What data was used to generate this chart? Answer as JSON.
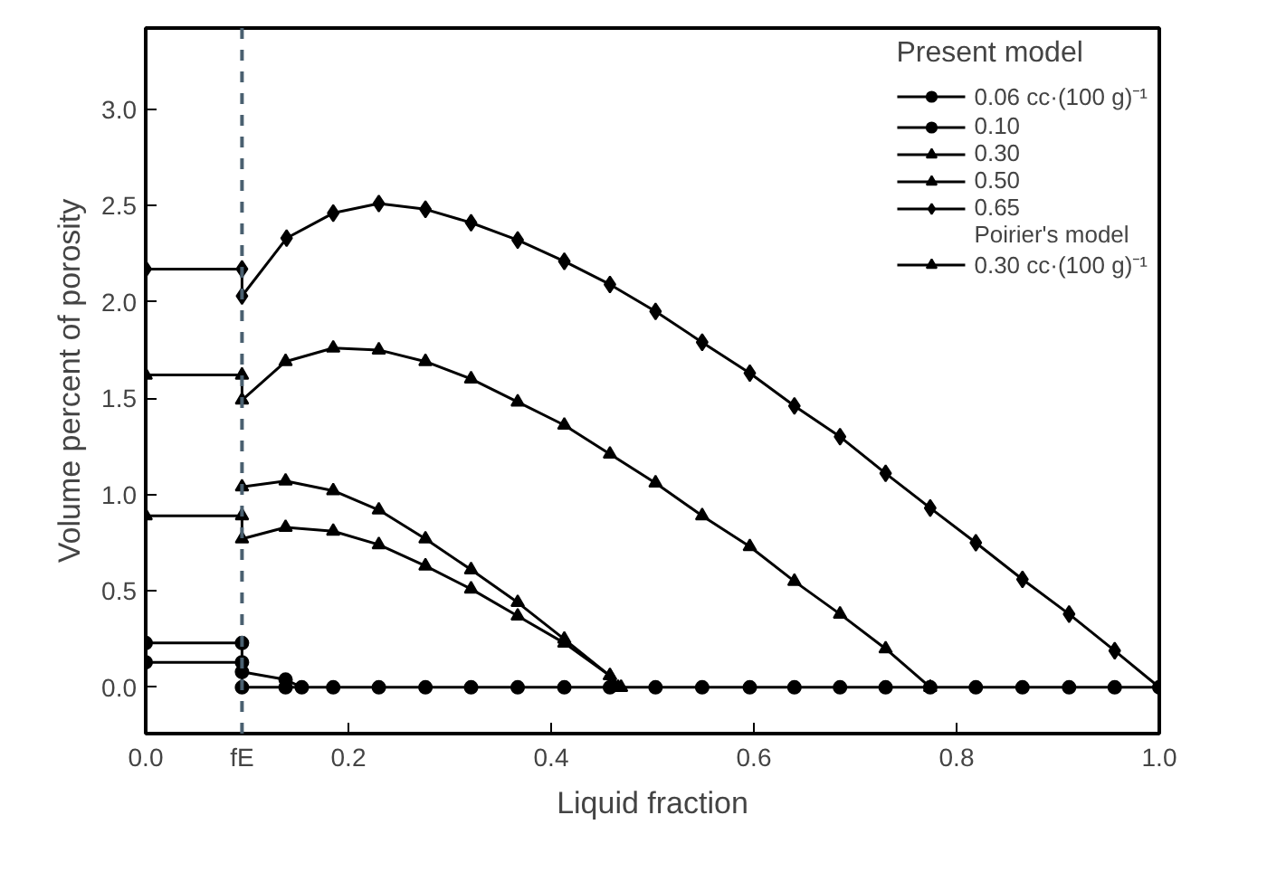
{
  "chart_data": {
    "type": "line",
    "xlabel": "Liquid fraction",
    "ylabel": "Volume percent of porosity",
    "xlim": [
      0,
      1
    ],
    "ylim": [
      -0.24,
      3.42
    ],
    "xticks": [
      "0.0",
      {
        "value": 0.095,
        "label": "fE"
      },
      {
        "value": 0.2,
        "label": "0.2"
      },
      {
        "value": 0.4,
        "label": "0.4"
      },
      {
        "value": 0.6,
        "label": "0.6"
      },
      {
        "value": 0.8,
        "label": "0.8"
      },
      {
        "value": 1.0,
        "label": "1.0"
      }
    ],
    "yticks": [
      {
        "value": 0,
        "label": "0.0"
      },
      {
        "value": 0.5,
        "label": "0.5"
      },
      {
        "value": 1.0,
        "label": "1.0"
      },
      {
        "value": 1.5,
        "label": "1.5"
      },
      {
        "value": 2.0,
        "label": "2.0"
      },
      {
        "value": 2.5,
        "label": "2.5"
      },
      {
        "value": 3.0,
        "label": "3.0"
      }
    ],
    "grid": false,
    "legend": "top right",
    "legend_title": "Present model",
    "line_style": "solid",
    "annotations": [
      "Poirier's model"
    ],
    "ref_lines": [
      {
        "axis": "x",
        "value": 0.095,
        "line_style": "dashed",
        "color": "#4a6070"
      }
    ],
    "series": [
      {
        "name": "0.06 cc·(100 g)⁻¹",
        "color": "#000000",
        "marker": "circle",
        "x": [
          0,
          0.095,
          0.095,
          0.138,
          0.185,
          0.23,
          0.276,
          0.321,
          0.367,
          0.413,
          0.458,
          0.503,
          0.549,
          0.596,
          0.64,
          0.685,
          0.73,
          0.774,
          0.819,
          0.865,
          0.911,
          0.956,
          1.0
        ],
        "values": [
          0.13,
          0.13,
          0,
          0,
          0,
          0,
          0,
          0,
          0,
          0,
          0,
          0,
          0,
          0,
          0,
          0,
          0,
          0,
          0,
          0,
          0,
          0,
          0
        ]
      },
      {
        "name": "0.10",
        "color": "#000000",
        "marker": "circle",
        "x": [
          0,
          0.095,
          0.095,
          0.138,
          0.154
        ],
        "values": [
          0.23,
          0.23,
          0.08,
          0.04,
          0
        ]
      },
      {
        "name": "0.30",
        "color": "#000000",
        "marker": "triangle",
        "x": [
          0,
          0.095,
          0.095,
          0.138,
          0.185,
          0.23,
          0.276,
          0.321,
          0.367,
          0.413,
          0.458,
          0.466
        ],
        "values": [
          0.89,
          0.89,
          0.77,
          0.83,
          0.81,
          0.74,
          0.63,
          0.51,
          0.37,
          0.23,
          0.06,
          0
        ]
      },
      {
        "name": "0.50",
        "color": "#000000",
        "marker": "triangle",
        "x": [
          0,
          0.095,
          0.095,
          0.138,
          0.185,
          0.23,
          0.276,
          0.321,
          0.367,
          0.413,
          0.458,
          0.503,
          0.549,
          0.596,
          0.64,
          0.685,
          0.73,
          0.774
        ],
        "values": [
          1.62,
          1.62,
          1.49,
          1.69,
          1.76,
          1.75,
          1.69,
          1.6,
          1.48,
          1.36,
          1.21,
          1.06,
          0.89,
          0.73,
          0.55,
          0.38,
          0.2,
          0
        ]
      },
      {
        "name": "0.65",
        "color": "#000000",
        "marker": "diamond",
        "x": [
          0,
          0.095,
          0.095,
          0.139,
          0.185,
          0.23,
          0.276,
          0.321,
          0.367,
          0.413,
          0.458,
          0.503,
          0.549,
          0.596,
          0.64,
          0.685,
          0.73,
          0.774,
          0.819,
          0.865,
          0.911,
          0.956,
          1.0
        ],
        "values": [
          2.17,
          2.17,
          2.03,
          2.33,
          2.46,
          2.51,
          2.48,
          2.41,
          2.32,
          2.21,
          2.09,
          1.95,
          1.79,
          1.63,
          1.46,
          1.3,
          1.11,
          0.93,
          0.75,
          0.56,
          0.38,
          0.19,
          0
        ]
      },
      {
        "name": "0.30 cc·(100 g)⁻¹",
        "color": "#000000",
        "marker": "triangle",
        "x": [
          0.095,
          0.138,
          0.185,
          0.23,
          0.276,
          0.321,
          0.367,
          0.413,
          0.458,
          0.469
        ],
        "values": [
          1.04,
          1.07,
          1.02,
          0.92,
          0.77,
          0.61,
          0.44,
          0.25,
          0.06,
          0
        ]
      }
    ]
  }
}
